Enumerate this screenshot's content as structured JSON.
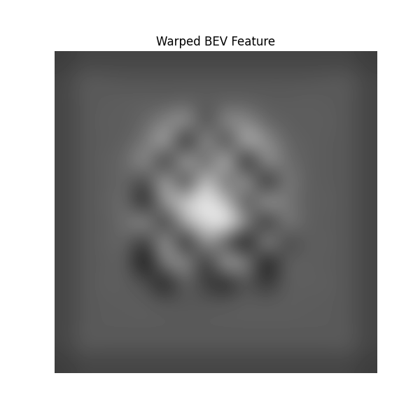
{
  "chart_data": {
    "type": "heatmap",
    "title": "Warped BEV Feature",
    "color": "gray",
    "tick_labels": false,
    "cells": [
      [
        30,
        33,
        33,
        33,
        33,
        33,
        33,
        33,
        33,
        33,
        33,
        33,
        33,
        33,
        33,
        30
      ],
      [
        33,
        41,
        40,
        39,
        39,
        39,
        39,
        39,
        39,
        39,
        39,
        39,
        39,
        40,
        41,
        33
      ],
      [
        33,
        40,
        41,
        42,
        42,
        41,
        42,
        42,
        42,
        42,
        41,
        41,
        42,
        41,
        40,
        33
      ],
      [
        33,
        40,
        42,
        41,
        45,
        55,
        68,
        30,
        62,
        58,
        44,
        42,
        41,
        42,
        40,
        33
      ],
      [
        33,
        40,
        41,
        42,
        50,
        75,
        12,
        70,
        25,
        78,
        60,
        44,
        42,
        41,
        40,
        33
      ],
      [
        33,
        40,
        42,
        45,
        65,
        18,
        80,
        35,
        85,
        10,
        66,
        48,
        42,
        41,
        40,
        33
      ],
      [
        33,
        40,
        41,
        46,
        30,
        76,
        22,
        88,
        40,
        74,
        15,
        55,
        42,
        41,
        40,
        33
      ],
      [
        33,
        40,
        42,
        48,
        15,
        68,
        84,
        95,
        78,
        30,
        72,
        50,
        42,
        42,
        40,
        33
      ],
      [
        33,
        40,
        41,
        47,
        66,
        20,
        74,
        88,
        100,
        62,
        18,
        56,
        42,
        41,
        40,
        33
      ],
      [
        33,
        40,
        42,
        45,
        25,
        72,
        12,
        68,
        35,
        8,
        68,
        30,
        42,
        42,
        40,
        33
      ],
      [
        33,
        40,
        41,
        43,
        10,
        58,
        65,
        20,
        72,
        60,
        12,
        44,
        42,
        41,
        40,
        33
      ],
      [
        33,
        40,
        42,
        42,
        38,
        15,
        45,
        30,
        18,
        40,
        25,
        42,
        42,
        42,
        40,
        33
      ],
      [
        33,
        40,
        41,
        41,
        42,
        40,
        39,
        40,
        41,
        42,
        42,
        42,
        41,
        41,
        40,
        33
      ],
      [
        33,
        40,
        41,
        41,
        41,
        41,
        41,
        41,
        41,
        41,
        41,
        41,
        41,
        41,
        40,
        33
      ],
      [
        33,
        41,
        40,
        40,
        40,
        40,
        40,
        40,
        40,
        40,
        40,
        40,
        40,
        40,
        41,
        33
      ],
      [
        30,
        33,
        33,
        33,
        33,
        33,
        33,
        33,
        33,
        33,
        33,
        33,
        33,
        33,
        33,
        30
      ]
    ]
  }
}
